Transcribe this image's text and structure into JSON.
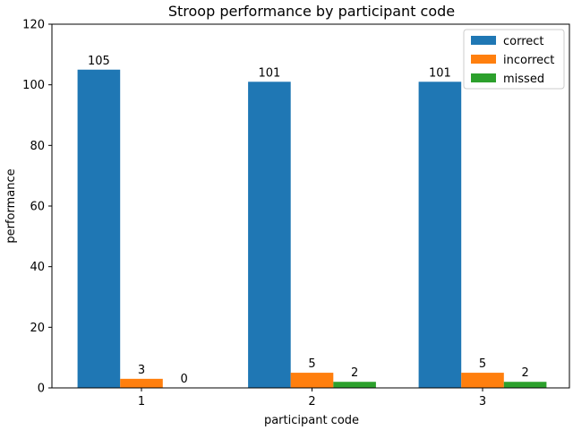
{
  "chart_data": {
    "type": "bar",
    "title": "Stroop performance by participant code",
    "xlabel": "participant code",
    "ylabel": "performance",
    "categories": [
      "1",
      "2",
      "3"
    ],
    "series": [
      {
        "name": "correct",
        "values": [
          105,
          101,
          101
        ],
        "color": "#1f77b4"
      },
      {
        "name": "incorrect",
        "values": [
          3,
          5,
          5
        ],
        "color": "#ff7f0e"
      },
      {
        "name": "missed",
        "values": [
          0,
          2,
          2
        ],
        "color": "#2ca02c"
      }
    ],
    "ylim": [
      0,
      120
    ],
    "yticks": [
      0,
      20,
      40,
      60,
      80,
      100,
      120
    ],
    "grid": false,
    "legend_position": "top-right",
    "data_labels": true
  }
}
